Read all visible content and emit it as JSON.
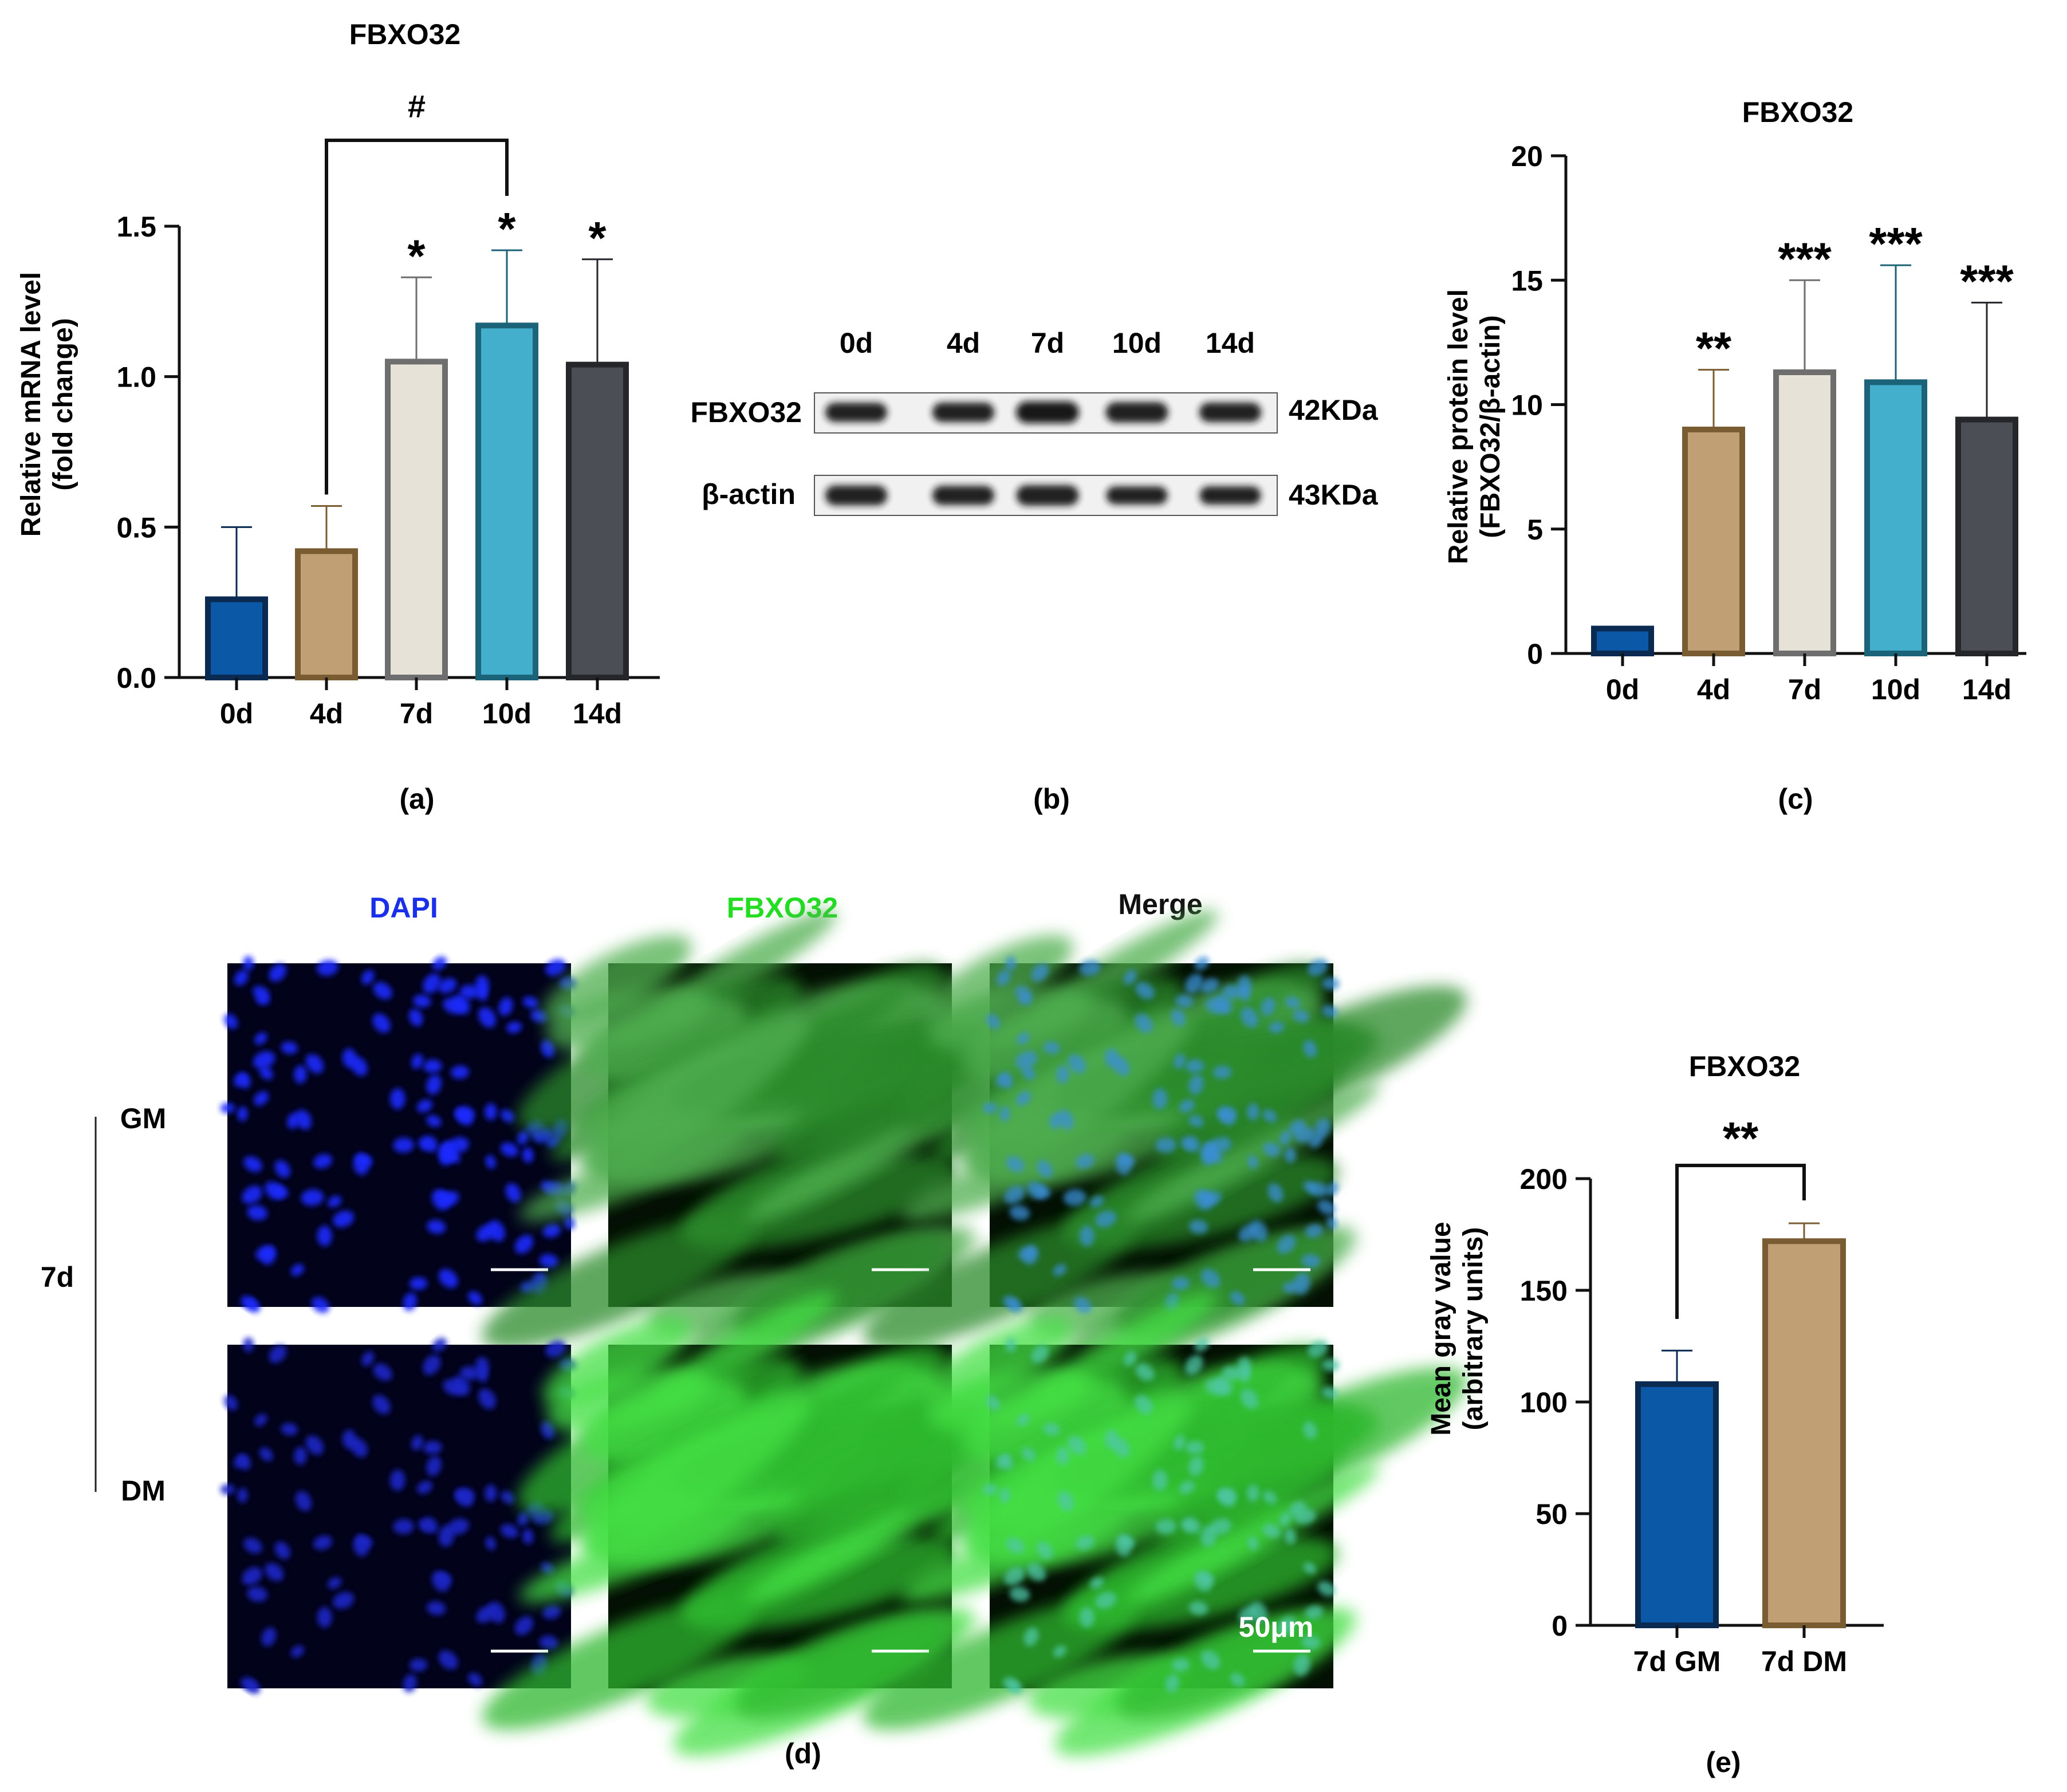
{
  "colors": {
    "bar_0d": "#0a58a6",
    "bar_4d": "#bf9f73",
    "bar_7d": "#e7e2d8",
    "bar_10d": "#43afcd",
    "bar_14d": "#4b4e55",
    "edge_0d": "#0a2a52",
    "edge_4d": "#7a5c32",
    "edge_7d": "#6e6e6e",
    "edge_10d": "#1a6378",
    "edge_14d": "#24262a",
    "dapi": "#1a2fe8",
    "fbxo32": "#22dd22",
    "merge": "#111111"
  },
  "panel_labels": {
    "a": "(a)",
    "b": "(b)",
    "c": "(c)",
    "d": "(d)",
    "e": "(e)"
  },
  "western_blot": {
    "lanes": [
      "0d",
      "4d",
      "7d",
      "10d",
      "14d"
    ],
    "rows": [
      {
        "protein": "FBXO32",
        "size": "42KDa",
        "intensity": [
          0.8,
          0.82,
          1.0,
          0.9,
          0.82
        ]
      },
      {
        "protein": "β-actin",
        "size": "43KDa",
        "intensity": [
          0.85,
          0.8,
          0.9,
          0.7,
          0.72
        ]
      }
    ]
  },
  "immunofluorescence": {
    "column_headers": [
      "DAPI",
      "FBXO32",
      "Merge"
    ],
    "group_label": "7d",
    "row_labels": [
      "GM",
      "DM"
    ],
    "scale_bar_label": "50μm"
  },
  "chart_data": [
    {
      "id": "a",
      "type": "bar",
      "title": "FBXO32",
      "ylabel_lines": [
        "Relative mRNA level",
        "(fold change)"
      ],
      "categories": [
        "0d",
        "4d",
        "7d",
        "10d",
        "14d"
      ],
      "values": [
        0.26,
        0.42,
        1.05,
        1.17,
        1.04
      ],
      "errors": [
        0.24,
        0.15,
        0.28,
        0.25,
        0.35
      ],
      "ylim": [
        0,
        1.5
      ],
      "yticks": [
        "0.0",
        "0.5",
        "1.0",
        "1.5"
      ],
      "bar_labels": [
        "",
        "",
        "*",
        "*",
        "*"
      ],
      "bracket": {
        "from": "4d",
        "to": "10d",
        "label": "#"
      }
    },
    {
      "id": "c",
      "type": "bar",
      "title": "FBXO32",
      "ylabel_lines": [
        "Relative protein level",
        "(FBXO32/β-actin)"
      ],
      "categories": [
        "0d",
        "4d",
        "7d",
        "10d",
        "14d"
      ],
      "values": [
        1.0,
        9.0,
        11.3,
        10.9,
        9.4
      ],
      "errors": [
        0.0,
        2.4,
        3.7,
        4.7,
        4.7
      ],
      "ylim": [
        0,
        20
      ],
      "yticks": [
        "0",
        "5",
        "10",
        "15",
        "20"
      ],
      "bar_labels": [
        "",
        "**",
        "***",
        "***",
        "***"
      ]
    },
    {
      "id": "e",
      "type": "bar",
      "title": "FBXO32",
      "ylabel_lines": [
        "Mean gray value",
        "(arbitrary units)"
      ],
      "categories": [
        "7d GM",
        "7d DM"
      ],
      "values": [
        108,
        172
      ],
      "errors": [
        15,
        8
      ],
      "ylim": [
        0,
        200
      ],
      "yticks": [
        "0",
        "50",
        "100",
        "150",
        "200"
      ],
      "bracket": {
        "from": "7d GM",
        "to": "7d DM",
        "label": "**"
      }
    }
  ]
}
